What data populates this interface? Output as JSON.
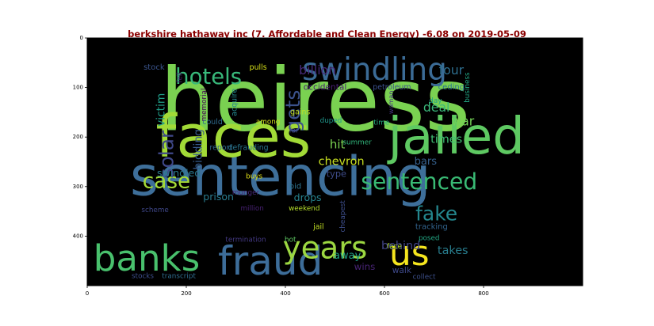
{
  "chart_data": {
    "type": "wordcloud",
    "title": "berkshire hathaway inc (7. Affordable and Clean Energy) -6.08 on 2019-05-09",
    "xlim": [
      0,
      1000
    ],
    "ylim": [
      500,
      0
    ],
    "x_ticks": [
      0,
      200,
      400,
      600,
      800
    ],
    "y_ticks": [
      0,
      100,
      200,
      300,
      400
    ],
    "background": "#000000",
    "words": [
      {
        "text": "heiress",
        "x": 460,
        "y": 125,
        "size": 175,
        "color": "#7ad151",
        "rotate": 0
      },
      {
        "text": "sentencing",
        "x": 390,
        "y": 280,
        "size": 110,
        "color": "#3e6f9a",
        "rotate": 0
      },
      {
        "text": "faces",
        "x": 295,
        "y": 200,
        "size": 118,
        "color": "#a2da37",
        "rotate": 0
      },
      {
        "text": "jailed",
        "x": 745,
        "y": 200,
        "size": 102,
        "color": "#5ec962",
        "rotate": 0
      },
      {
        "text": "swindling",
        "x": 580,
        "y": 65,
        "size": 62,
        "color": "#3b6b96",
        "rotate": 0
      },
      {
        "text": "hotels",
        "x": 245,
        "y": 78,
        "size": 44,
        "color": "#38b87a",
        "rotate": 0
      },
      {
        "text": "banks",
        "x": 120,
        "y": 445,
        "size": 72,
        "color": "#49c16d",
        "rotate": 0
      },
      {
        "text": "fraud",
        "x": 370,
        "y": 450,
        "size": 80,
        "color": "#3d6d99",
        "rotate": 0
      },
      {
        "text": "years",
        "x": 480,
        "y": 425,
        "size": 62,
        "color": "#9cd741",
        "rotate": 0
      },
      {
        "text": "us",
        "x": 650,
        "y": 435,
        "size": 70,
        "color": "#f5e51e",
        "rotate": 0
      },
      {
        "text": "sentenced",
        "x": 670,
        "y": 290,
        "size": 45,
        "color": "#39ba74",
        "rotate": 0
      },
      {
        "text": "case",
        "x": 160,
        "y": 290,
        "size": 42,
        "color": "#a5db36",
        "rotate": 0
      },
      {
        "text": "fake",
        "x": 705,
        "y": 355,
        "size": 40,
        "color": "#24878e",
        "rotate": 0
      },
      {
        "text": "solar",
        "x": 160,
        "y": 235,
        "size": 40,
        "color": "#3f4889",
        "rotate": -90
      },
      {
        "text": "gets",
        "x": 415,
        "y": 148,
        "size": 40,
        "color": "#3b528b",
        "rotate": -90
      },
      {
        "text": "billion",
        "x": 465,
        "y": 65,
        "size": 25,
        "color": "#472a7a",
        "rotate": 0
      },
      {
        "text": "four",
        "x": 735,
        "y": 65,
        "size": 25,
        "color": "#2e6e8e",
        "rotate": 0
      },
      {
        "text": "deal",
        "x": 705,
        "y": 140,
        "size": 25,
        "color": "#3ab77a",
        "rotate": 0
      },
      {
        "text": "war",
        "x": 758,
        "y": 168,
        "size": 25,
        "color": "#73d056",
        "rotate": 0
      },
      {
        "text": "times",
        "x": 725,
        "y": 205,
        "size": 23,
        "color": "#3fbc73",
        "rotate": 0
      },
      {
        "text": "hit",
        "x": 505,
        "y": 215,
        "size": 24,
        "color": "#7ad151",
        "rotate": 0
      },
      {
        "text": "bars",
        "x": 683,
        "y": 250,
        "size": 21,
        "color": "#35608d",
        "rotate": 0
      },
      {
        "text": "chevron",
        "x": 513,
        "y": 250,
        "size": 23,
        "color": "#c8e020",
        "rotate": 0
      },
      {
        "text": "type",
        "x": 503,
        "y": 275,
        "size": 18,
        "color": "#3e4c8a",
        "rotate": 0
      },
      {
        "text": "swindled",
        "x": 185,
        "y": 272,
        "size": 20,
        "color": "#2a788e",
        "rotate": 0
      },
      {
        "text": "prison",
        "x": 265,
        "y": 320,
        "size": 20,
        "color": "#297b8e",
        "rotate": 0
      },
      {
        "text": "drops",
        "x": 445,
        "y": 322,
        "size": 20,
        "color": "#26828e",
        "rotate": 0
      },
      {
        "text": "victim",
        "x": 150,
        "y": 145,
        "size": 22,
        "color": "#1f9e89",
        "rotate": -90
      },
      {
        "text": "bidding",
        "x": 225,
        "y": 225,
        "size": 22,
        "color": "#375b8d",
        "rotate": -90
      },
      {
        "text": "behind",
        "x": 633,
        "y": 420,
        "size": 23,
        "color": "#414487",
        "rotate": 0
      },
      {
        "text": "takes",
        "x": 738,
        "y": 430,
        "size": 23,
        "color": "#287d8e",
        "rotate": 0
      },
      {
        "text": "away",
        "x": 525,
        "y": 440,
        "size": 21,
        "color": "#1fa187",
        "rotate": 0
      },
      {
        "text": "wins",
        "x": 560,
        "y": 462,
        "size": 19,
        "color": "#482475",
        "rotate": 0
      },
      {
        "text": "walk",
        "x": 635,
        "y": 470,
        "size": 17,
        "color": "#3e4989",
        "rotate": 0
      },
      {
        "text": "gains",
        "x": 430,
        "y": 150,
        "size": 15,
        "color": "#c0df25",
        "rotate": 0
      },
      {
        "text": "stock",
        "x": 135,
        "y": 60,
        "size": 16,
        "color": "#3a548c",
        "rotate": 0
      },
      {
        "text": "pulls",
        "x": 345,
        "y": 60,
        "size": 15,
        "color": "#d8e219",
        "rotate": 0
      },
      {
        "text": "occidental",
        "x": 480,
        "y": 100,
        "size": 17,
        "color": "#481f70",
        "rotate": 0
      },
      {
        "text": "petroleum",
        "x": 615,
        "y": 100,
        "size": 15,
        "color": "#3b518b",
        "rotate": 0
      },
      {
        "text": "ceding",
        "x": 735,
        "y": 100,
        "size": 16,
        "color": "#2b758e",
        "rotate": 0
      },
      {
        "text": "feil",
        "x": 188,
        "y": 80,
        "size": 14,
        "color": "#482173",
        "rotate": -90
      },
      {
        "text": "acquire",
        "x": 298,
        "y": 130,
        "size": 15,
        "color": "#23898e",
        "rotate": -90
      },
      {
        "text": "memorial",
        "x": 237,
        "y": 135,
        "size": 14,
        "color": "#440154",
        "rotate": -90
      },
      {
        "text": "among",
        "x": 365,
        "y": 170,
        "size": 14,
        "color": "#d2e21b",
        "rotate": 0
      },
      {
        "text": "could",
        "x": 253,
        "y": 170,
        "size": 15,
        "color": "#2f6b8e",
        "rotate": 0
      },
      {
        "text": "far",
        "x": 417,
        "y": 188,
        "size": 14,
        "color": "#3f4788",
        "rotate": 0
      },
      {
        "text": "report",
        "x": 270,
        "y": 222,
        "size": 15,
        "color": "#31688e",
        "rotate": 0
      },
      {
        "text": "defrauding",
        "x": 325,
        "y": 222,
        "size": 15,
        "color": "#2a768e",
        "rotate": 0
      },
      {
        "text": "duped",
        "x": 492,
        "y": 168,
        "size": 14,
        "color": "#1f968b",
        "rotate": 0
      },
      {
        "text": "summer",
        "x": 545,
        "y": 212,
        "size": 14,
        "color": "#31b57b",
        "rotate": 0
      },
      {
        "text": "time",
        "x": 594,
        "y": 172,
        "size": 14,
        "color": "#26ad81",
        "rotate": 0
      },
      {
        "text": "woman",
        "x": 613,
        "y": 130,
        "size": 13,
        "color": "#46337f",
        "rotate": -90
      },
      {
        "text": "day",
        "x": 703,
        "y": 128,
        "size": 14,
        "color": "#1fa088",
        "rotate": 0
      },
      {
        "text": "business",
        "x": 768,
        "y": 100,
        "size": 14,
        "color": "#22a785",
        "rotate": -90
      },
      {
        "text": "buys",
        "x": 337,
        "y": 280,
        "size": 14,
        "color": "#e5e419",
        "rotate": 0
      },
      {
        "text": "bid",
        "x": 420,
        "y": 300,
        "size": 16,
        "color": "#2c728e",
        "rotate": 0
      },
      {
        "text": "munger",
        "x": 320,
        "y": 313,
        "size": 14,
        "color": "#482878",
        "rotate": 0
      },
      {
        "text": "million",
        "x": 333,
        "y": 345,
        "size": 14,
        "color": "#482173",
        "rotate": 0
      },
      {
        "text": "weekend",
        "x": 438,
        "y": 345,
        "size": 14,
        "color": "#b5de2b",
        "rotate": 0
      },
      {
        "text": "cheapest",
        "x": 517,
        "y": 360,
        "size": 14,
        "color": "#3d4e8a",
        "rotate": -90
      },
      {
        "text": "jail",
        "x": 467,
        "y": 382,
        "size": 15,
        "color": "#c2df23",
        "rotate": 0
      },
      {
        "text": "scheme",
        "x": 137,
        "y": 348,
        "size": 14,
        "color": "#3f4788",
        "rotate": 0
      },
      {
        "text": "termination",
        "x": 320,
        "y": 408,
        "size": 14,
        "color": "#443983",
        "rotate": 0
      },
      {
        "text": "hot",
        "x": 410,
        "y": 408,
        "size": 14,
        "color": "#5ec962",
        "rotate": 0
      },
      {
        "text": "tracking",
        "x": 695,
        "y": 382,
        "size": 16,
        "color": "#32648e",
        "rotate": 0
      },
      {
        "text": "posed",
        "x": 690,
        "y": 405,
        "size": 14,
        "color": "#22a884",
        "rotate": 0
      },
      {
        "text": "face",
        "x": 620,
        "y": 422,
        "size": 14,
        "color": "#b0dd2f",
        "rotate": 0
      },
      {
        "text": "stocks",
        "x": 112,
        "y": 482,
        "size": 14,
        "color": "#3d4d8a",
        "rotate": 0
      },
      {
        "text": "transcript",
        "x": 185,
        "y": 482,
        "size": 14,
        "color": "#2f6c8e",
        "rotate": 0
      },
      {
        "text": "collect",
        "x": 680,
        "y": 483,
        "size": 14,
        "color": "#3c4f8a",
        "rotate": 0
      }
    ]
  }
}
